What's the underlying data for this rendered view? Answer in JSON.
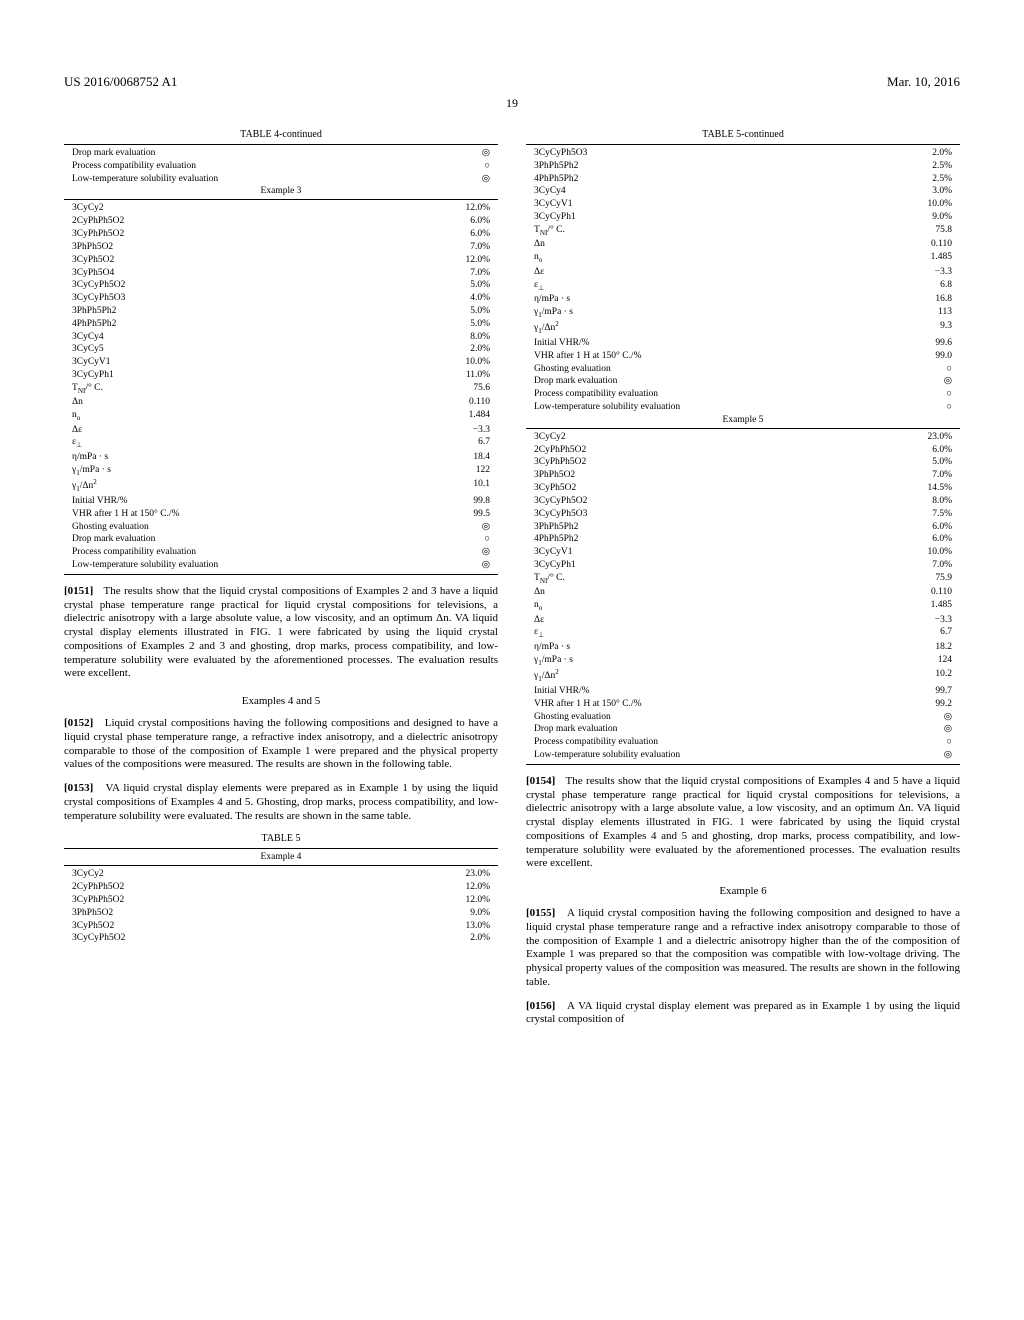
{
  "header": {
    "doc_number": "US 2016/0068752 A1",
    "date": "Mar. 10, 2016",
    "page": "19"
  },
  "symbols": {
    "double_circle": "◎",
    "circle": "○"
  },
  "left": {
    "table4": {
      "title": "TABLE 4-continued",
      "pre_rows": [
        {
          "k": "Drop mark evaluation",
          "v": "◎"
        },
        {
          "k": "Process compatibility evaluation",
          "v": "○"
        },
        {
          "k": "Low-temperature solubility evaluation",
          "v": "◎"
        }
      ],
      "ex3_label": "Example 3",
      "rows": [
        {
          "k": "3CyCy2",
          "v": "12.0%"
        },
        {
          "k": "2CyPhPh5O2",
          "v": "6.0%"
        },
        {
          "k": "3CyPhPh5O2",
          "v": "6.0%"
        },
        {
          "k": "3PhPh5O2",
          "v": "7.0%"
        },
        {
          "k": "3CyPh5O2",
          "v": "12.0%"
        },
        {
          "k": "3CyPh5O4",
          "v": "7.0%"
        },
        {
          "k": "3CyCyPh5O2",
          "v": "5.0%"
        },
        {
          "k": "3CyCyPh5O3",
          "v": "4.0%"
        },
        {
          "k": "3PhPh5Ph2",
          "v": "5.0%"
        },
        {
          "k": "4PhPh5Ph2",
          "v": "5.0%"
        },
        {
          "k": "3CyCy4",
          "v": "8.0%"
        },
        {
          "k": "3CyCy5",
          "v": "2.0%"
        },
        {
          "k": "3CyCyV1",
          "v": "10.0%"
        },
        {
          "k": "3CyCyPh1",
          "v": "11.0%"
        },
        {
          "k": "T_NI_/° C.",
          "v": "75.6"
        },
        {
          "k": "Δn",
          "v": "0.110"
        },
        {
          "k": "n_o_",
          "v": "1.484"
        },
        {
          "k": "Δε",
          "v": "−3.3"
        },
        {
          "k": "ε_⊥_",
          "v": "6.7"
        },
        {
          "k": "η/mPa · s",
          "v": "18.4"
        },
        {
          "k": "γ_1_/mPa · s",
          "v": "122"
        },
        {
          "k": "γ_1_/Δn^2^",
          "v": "10.1"
        },
        {
          "k": "Initial VHR/%",
          "v": "99.8"
        },
        {
          "k": "VHR after 1 H at 150° C./%",
          "v": "99.5"
        },
        {
          "k": "Ghosting evaluation",
          "v": "◎"
        },
        {
          "k": "Drop mark evaluation",
          "v": "○"
        },
        {
          "k": "Process compatibility evaluation",
          "v": "◎"
        },
        {
          "k": "Low-temperature solubility evaluation",
          "v": "◎"
        }
      ]
    },
    "para_0151": "The results show that the liquid crystal compositions of Examples 2 and 3 have a liquid crystal phase temperature range practical for liquid crystal compositions for televisions, a dielectric anisotropy with a large absolute value, a low viscosity, and an optimum Δn. VA liquid crystal display elements illustrated in FIG. 1 were fabricated by using the liquid crystal compositions of Examples 2 and 3 and ghosting, drop marks, process compatibility, and low-temperature solubility were evaluated by the aforementioned processes. The evaluation results were excellent.",
    "ex45_heading": "Examples 4 and 5",
    "para_0152": "Liquid crystal compositions having the following compositions and designed to have a liquid crystal phase temperature range, a refractive index anisotropy, and a dielectric anisotropy comparable to those of the composition of Example 1 were prepared and the physical property values of the compositions were measured. The results are shown in the following table.",
    "para_0153": "VA liquid crystal display elements were prepared as in Example 1 by using the liquid crystal compositions of Examples 4 and 5. Ghosting, drop marks, process compatibility, and low-temperature solubility were evaluated. The results are shown in the same table.",
    "table5": {
      "title": "TABLE 5",
      "ex4_label": "Example 4",
      "rows": [
        {
          "k": "3CyCy2",
          "v": "23.0%"
        },
        {
          "k": "2CyPhPh5O2",
          "v": "12.0%"
        },
        {
          "k": "3CyPhPh5O2",
          "v": "12.0%"
        },
        {
          "k": "3PhPh5O2",
          "v": "9.0%"
        },
        {
          "k": "3CyPh5O2",
          "v": "13.0%"
        },
        {
          "k": "3CyCyPh5O2",
          "v": "2.0%"
        }
      ]
    }
  },
  "right": {
    "table5c": {
      "title": "TABLE 5-continued",
      "rows1": [
        {
          "k": "3CyCyPh5O3",
          "v": "2.0%"
        },
        {
          "k": "3PhPh5Ph2",
          "v": "2.5%"
        },
        {
          "k": "4PhPh5Ph2",
          "v": "2.5%"
        },
        {
          "k": "3CyCy4",
          "v": "3.0%"
        },
        {
          "k": "3CyCyV1",
          "v": "10.0%"
        },
        {
          "k": "3CyCyPh1",
          "v": "9.0%"
        },
        {
          "k": "T_NI_/° C.",
          "v": "75.8"
        },
        {
          "k": "Δn",
          "v": "0.110"
        },
        {
          "k": "n_o_",
          "v": "1.485"
        },
        {
          "k": "Δε",
          "v": "−3.3"
        },
        {
          "k": "ε_⊥_",
          "v": "6.8"
        },
        {
          "k": "η/mPa · s",
          "v": "16.8"
        },
        {
          "k": "γ_1_/mPa · s",
          "v": "113"
        },
        {
          "k": "γ_1_/Δn^2^",
          "v": "9.3"
        },
        {
          "k": "Initial VHR/%",
          "v": "99.6"
        },
        {
          "k": "VHR after 1 H at 150° C./%",
          "v": "99.0"
        },
        {
          "k": "Ghosting evaluation",
          "v": "○"
        },
        {
          "k": "Drop mark evaluation",
          "v": "◎"
        },
        {
          "k": "Process compatibility evaluation",
          "v": "○"
        },
        {
          "k": "Low-temperature solubility evaluation",
          "v": "○"
        }
      ],
      "ex5_label": "Example 5",
      "rows2": [
        {
          "k": "3CyCy2",
          "v": "23.0%"
        },
        {
          "k": "2CyPhPh5O2",
          "v": "6.0%"
        },
        {
          "k": "3CyPhPh5O2",
          "v": "5.0%"
        },
        {
          "k": "3PhPh5O2",
          "v": "7.0%"
        },
        {
          "k": "3CyPh5O2",
          "v": "14.5%"
        },
        {
          "k": "3CyCyPh5O2",
          "v": "8.0%"
        },
        {
          "k": "3CyCyPh5O3",
          "v": "7.5%"
        },
        {
          "k": "3PhPh5Ph2",
          "v": "6.0%"
        },
        {
          "k": "4PhPh5Ph2",
          "v": "6.0%"
        },
        {
          "k": "3CyCyV1",
          "v": "10.0%"
        },
        {
          "k": "3CyCyPh1",
          "v": "7.0%"
        },
        {
          "k": "T_NI_/° C.",
          "v": "75.9"
        },
        {
          "k": "Δn",
          "v": "0.110"
        },
        {
          "k": "n_o_",
          "v": "1.485"
        },
        {
          "k": "Δε",
          "v": "−3.3"
        },
        {
          "k": "ε_⊥_",
          "v": "6.7"
        },
        {
          "k": "η/mPa · s",
          "v": "18.2"
        },
        {
          "k": "γ_1_/mPa · s",
          "v": "124"
        },
        {
          "k": "γ_1_/Δn^2^",
          "v": "10.2"
        },
        {
          "k": "Initial VHR/%",
          "v": "99.7"
        },
        {
          "k": "VHR after 1 H at 150° C./%",
          "v": "99.2"
        },
        {
          "k": "Ghosting evaluation",
          "v": "◎"
        },
        {
          "k": "Drop mark evaluation",
          "v": "◎"
        },
        {
          "k": "Process compatibility evaluation",
          "v": "○"
        },
        {
          "k": "Low-temperature solubility evaluation",
          "v": "◎"
        }
      ]
    },
    "para_0154": "The results show that the liquid crystal compositions of Examples 4 and 5 have a liquid crystal phase temperature range practical for liquid crystal compositions for televisions, a dielectric anisotropy with a large absolute value, a low viscosity, and an optimum Δn. VA liquid crystal display elements illustrated in FIG. 1 were fabricated by using the liquid crystal compositions of Examples 4 and 5 and ghosting, drop marks, process compatibility, and low-temperature solubility were evaluated by the aforementioned processes. The evaluation results were excellent.",
    "ex6_heading": "Example 6",
    "para_0155": "A liquid crystal composition having the following composition and designed to have a liquid crystal phase temperature range and a refractive index anisotropy comparable to those of the composition of Example 1 and a dielectric anisotropy higher than the of the composition of Example 1 was prepared so that the composition was compatible with low-voltage driving. The physical property values of the composition was measured. The results are shown in the following table.",
    "para_0156": "A VA liquid crystal display element was prepared as in Example 1 by using the liquid crystal composition of"
  }
}
